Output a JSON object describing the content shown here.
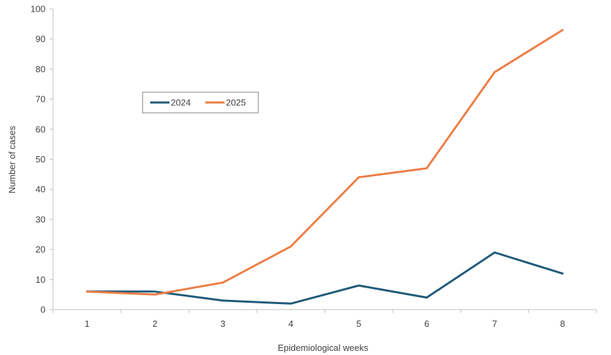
{
  "chart_data": {
    "type": "line",
    "categories": [
      "1",
      "2",
      "3",
      "4",
      "5",
      "6",
      "7",
      "8"
    ],
    "series": [
      {
        "name": "2024",
        "values": [
          6,
          6,
          3,
          2,
          8,
          4,
          19,
          12
        ],
        "color": "#1f5a7a"
      },
      {
        "name": "2025",
        "values": [
          6,
          5,
          9,
          21,
          44,
          47,
          79,
          93
        ],
        "color": "#ed7d45"
      }
    ],
    "xlabel": "Epidemiological weeks",
    "ylabel": "Number of cases",
    "ylim": [
      0,
      100
    ],
    "yticks": [
      0,
      10,
      20,
      30,
      40,
      50,
      60,
      70,
      80,
      90,
      100
    ],
    "grid": false,
    "legend": "upper-left"
  }
}
